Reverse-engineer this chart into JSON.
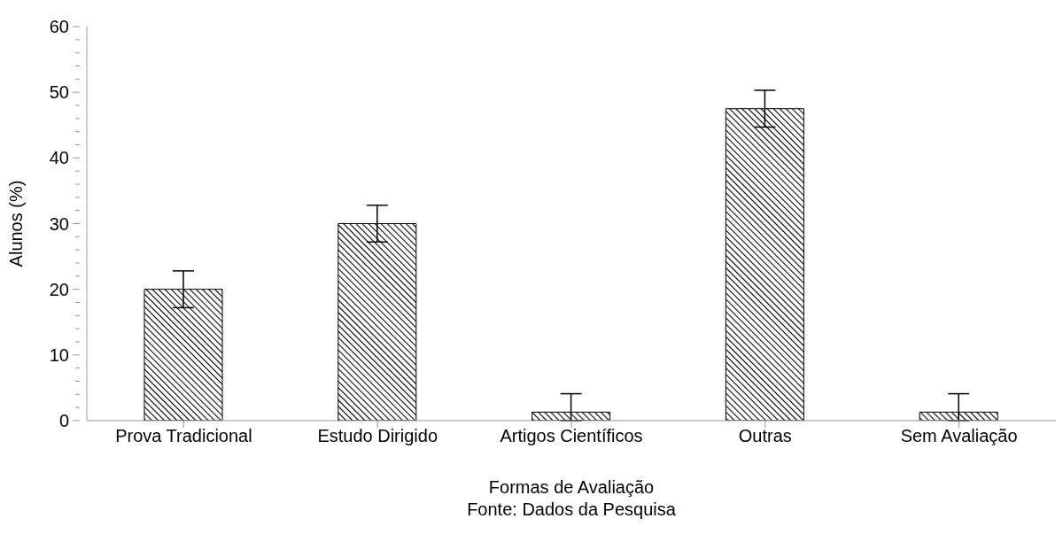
{
  "chart_data": {
    "type": "bar",
    "xlabel": "Formas de Avaliação",
    "ylabel": "Alunos (%)",
    "categories": [
      "Prova Tradicional",
      "Estudo Dirigido",
      "Artigos Científicos",
      "Outras",
      "Sem Avaliação"
    ],
    "values": [
      20,
      30,
      1.3,
      47.5,
      1.3
    ],
    "errors": [
      2.8,
      2.8,
      [
        0,
        4.1
      ],
      2.8,
      [
        0,
        4.1
      ]
    ],
    "color": "#000000",
    "ylim": [
      0,
      60
    ],
    "yticks": [
      0,
      {
        "value": 2,
        "label": null
      },
      {
        "value": 4,
        "label": null
      },
      {
        "value": 6,
        "label": null
      },
      {
        "value": 8,
        "label": null
      },
      10,
      {
        "value": 12,
        "label": null
      },
      {
        "value": 14,
        "label": null
      },
      {
        "value": 16,
        "label": null
      },
      {
        "value": 18,
        "label": null
      },
      20,
      {
        "value": 22,
        "label": null
      },
      {
        "value": 24,
        "label": null
      },
      {
        "value": 26,
        "label": null
      },
      {
        "value": 28,
        "label": null
      },
      30,
      {
        "value": 32,
        "label": null
      },
      {
        "value": 34,
        "label": null
      },
      {
        "value": 36,
        "label": null
      },
      {
        "value": 38,
        "label": null
      },
      40,
      {
        "value": 42,
        "label": null
      },
      {
        "value": 44,
        "label": null
      },
      {
        "value": 46,
        "label": null
      },
      {
        "value": 48,
        "label": null
      },
      50,
      {
        "value": 52,
        "label": null
      },
      {
        "value": 54,
        "label": null
      },
      {
        "value": 56,
        "label": null
      },
      {
        "value": 58,
        "label": null
      },
      60
    ],
    "grid": false,
    "legend": false,
    "annotations": [
      "Fonte: Dados da Pesquisa"
    ]
  }
}
